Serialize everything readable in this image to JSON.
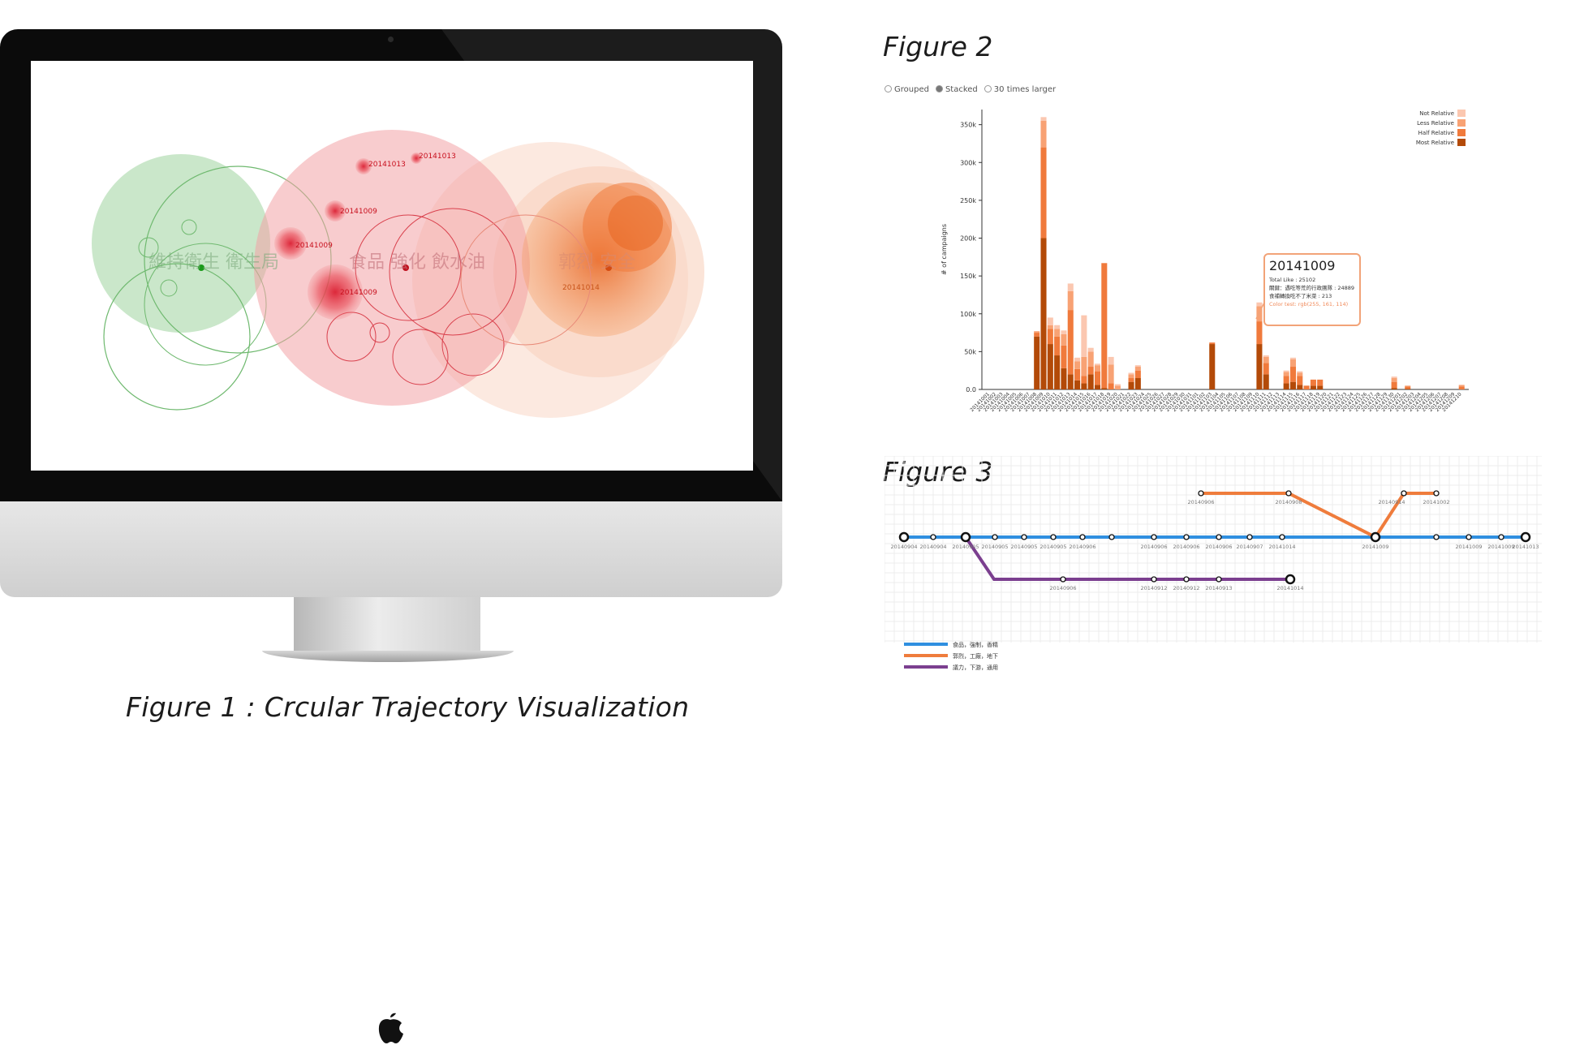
{
  "captions": {
    "figure1": "Figure 1 : Crcular Trajectory Visualization",
    "figure2": "Figure 2",
    "figure3": "Figure 3"
  },
  "figure1": {
    "circle_labels": {
      "green": "維持衛生 衛生局",
      "red": "食品 強化 飲水油",
      "orange": "郭烈 安全"
    },
    "event_labels": [
      "20141013",
      "20141013",
      "20141009",
      "20141009",
      "20141009",
      "20141014"
    ]
  },
  "chart_data": [
    {
      "type": "bar",
      "mode_options": [
        "Grouped",
        "Stacked",
        "30 times larger"
      ],
      "selected_mode": "Stacked",
      "ylabel": "# of campaigns",
      "yticks": [
        "0.0",
        "50k",
        "100k",
        "150k",
        "200k",
        "250k",
        "300k",
        "350k"
      ],
      "ylim": [
        0,
        370000
      ],
      "legend": [
        "Not Relative",
        "Less Relative",
        "Half Relative",
        "Most Relative"
      ],
      "legend_position": "top-right",
      "colors": [
        "#fbc7b0",
        "#f8a274",
        "#f07a3c",
        "#b34a08"
      ],
      "categories": [
        "20141001",
        "20141002",
        "20141003",
        "20141004",
        "20141005",
        "20141006",
        "20141007",
        "20141008",
        "20141009",
        "20141010",
        "20141011",
        "20141012",
        "20141013",
        "20141014",
        "20141015",
        "20141016",
        "20141017",
        "20141018",
        "20141019",
        "20141020",
        "20141021",
        "20141022",
        "20141023",
        "20141024",
        "20141025",
        "20141026",
        "20141027",
        "20141028",
        "20141029",
        "20141030",
        "20141031",
        "20141101",
        "20141102",
        "20141103",
        "20141104",
        "20141105",
        "20141106",
        "20141107",
        "20141108",
        "20141109",
        "20141110",
        "20141111",
        "20141112",
        "20141113",
        "20141114",
        "20141115",
        "20141116",
        "20141117",
        "20141118",
        "20141119",
        "20141120",
        "20141121",
        "20141122",
        "20141123",
        "20141124",
        "20141125",
        "20141126",
        "20141127",
        "20141128",
        "20141129",
        "20141130",
        "20141201",
        "20141202",
        "20141203",
        "20141204",
        "20141205",
        "20141206",
        "20141207",
        "20141208",
        "20141209",
        "20141210"
      ],
      "series": [
        {
          "name": "Most Relative",
          "values": [
            0,
            0,
            0,
            0,
            0,
            0,
            0,
            70000,
            200000,
            60000,
            45000,
            28000,
            20000,
            12000,
            8000,
            20000,
            6000,
            2000,
            0,
            0,
            0,
            10000,
            15000,
            0,
            0,
            0,
            0,
            0,
            0,
            0,
            0,
            0,
            0,
            60000,
            0,
            0,
            0,
            0,
            0,
            0,
            60000,
            20000,
            0,
            0,
            8000,
            10000,
            6000,
            0,
            5000,
            5000,
            0,
            0,
            0,
            0,
            0,
            0,
            0,
            0,
            0,
            0,
            2000,
            0,
            1000,
            0,
            0,
            0,
            0,
            0,
            0,
            0,
            0
          ]
        },
        {
          "name": "Half Relative",
          "values": [
            0,
            0,
            0,
            0,
            0,
            0,
            0,
            5000,
            120000,
            20000,
            25000,
            30000,
            85000,
            15000,
            10000,
            10000,
            18000,
            165000,
            8000,
            0,
            0,
            5000,
            10000,
            0,
            0,
            0,
            0,
            0,
            0,
            0,
            0,
            0,
            0,
            2000,
            0,
            0,
            0,
            0,
            0,
            0,
            30000,
            15000,
            0,
            0,
            10000,
            20000,
            12000,
            5000,
            8000,
            8000,
            0,
            0,
            0,
            0,
            0,
            0,
            0,
            0,
            0,
            0,
            8000,
            0,
            3000,
            0,
            0,
            0,
            0,
            0,
            0,
            0,
            4000
          ]
        },
        {
          "name": "Less Relative",
          "values": [
            0,
            0,
            0,
            0,
            0,
            0,
            0,
            2000,
            35000,
            5000,
            10000,
            15000,
            25000,
            10000,
            25000,
            20000,
            8000,
            0,
            25000,
            5000,
            0,
            5000,
            5000,
            0,
            0,
            0,
            0,
            0,
            0,
            0,
            0,
            0,
            0,
            0,
            0,
            0,
            0,
            0,
            0,
            0,
            20000,
            8000,
            0,
            0,
            5000,
            10000,
            4000,
            0,
            0,
            0,
            0,
            0,
            0,
            0,
            0,
            0,
            0,
            0,
            0,
            0,
            5000,
            0,
            1000,
            0,
            0,
            0,
            0,
            0,
            0,
            0,
            2000
          ]
        },
        {
          "name": "Not Relative",
          "values": [
            0,
            0,
            0,
            0,
            0,
            0,
            0,
            0,
            5000,
            10000,
            5000,
            5000,
            10000,
            5000,
            55000,
            5000,
            2000,
            0,
            10000,
            2000,
            0,
            2000,
            2000,
            0,
            0,
            0,
            0,
            0,
            0,
            0,
            0,
            0,
            0,
            0,
            0,
            0,
            0,
            0,
            0,
            0,
            5000,
            2000,
            0,
            0,
            2000,
            2000,
            2000,
            0,
            0,
            0,
            0,
            0,
            0,
            0,
            0,
            0,
            0,
            0,
            0,
            0,
            2000,
            0,
            0,
            0,
            0,
            0,
            0,
            0,
            0,
            0,
            0
          ]
        }
      ],
      "tooltip": {
        "date": "20141009",
        "line1": "Total Like : 25102",
        "line2": "關鍵：遇吃等荒的行政團隊 : 24889",
        "line3": "食補轉換吃不了米菜 : 213",
        "line4": "Color test: rgb(255, 161, 114)"
      }
    },
    {
      "type": "line",
      "legend": [
        {
          "name": "食品，強制，香精",
          "color": "#2f8fe0"
        },
        {
          "name": "郭烈，工廠，地下",
          "color": "#ef7c3c"
        },
        {
          "name": "議力，下游，通用",
          "color": "#7b3f8f"
        }
      ],
      "blue_dates": [
        "20140904",
        "20140904",
        "20140905",
        "20140905",
        "20140905",
        "20140905",
        "20140906",
        "20140906",
        "20140906",
        "20140906",
        "20140907",
        "20141014",
        "20141009",
        "20141009",
        "20141009",
        "20141013"
      ],
      "orange_dates": [
        "20140906",
        "20140908",
        "20140914",
        "20141002"
      ],
      "purple_dates": [
        "20140906",
        "20140912",
        "20140912",
        "20140913",
        "20141014"
      ]
    }
  ]
}
